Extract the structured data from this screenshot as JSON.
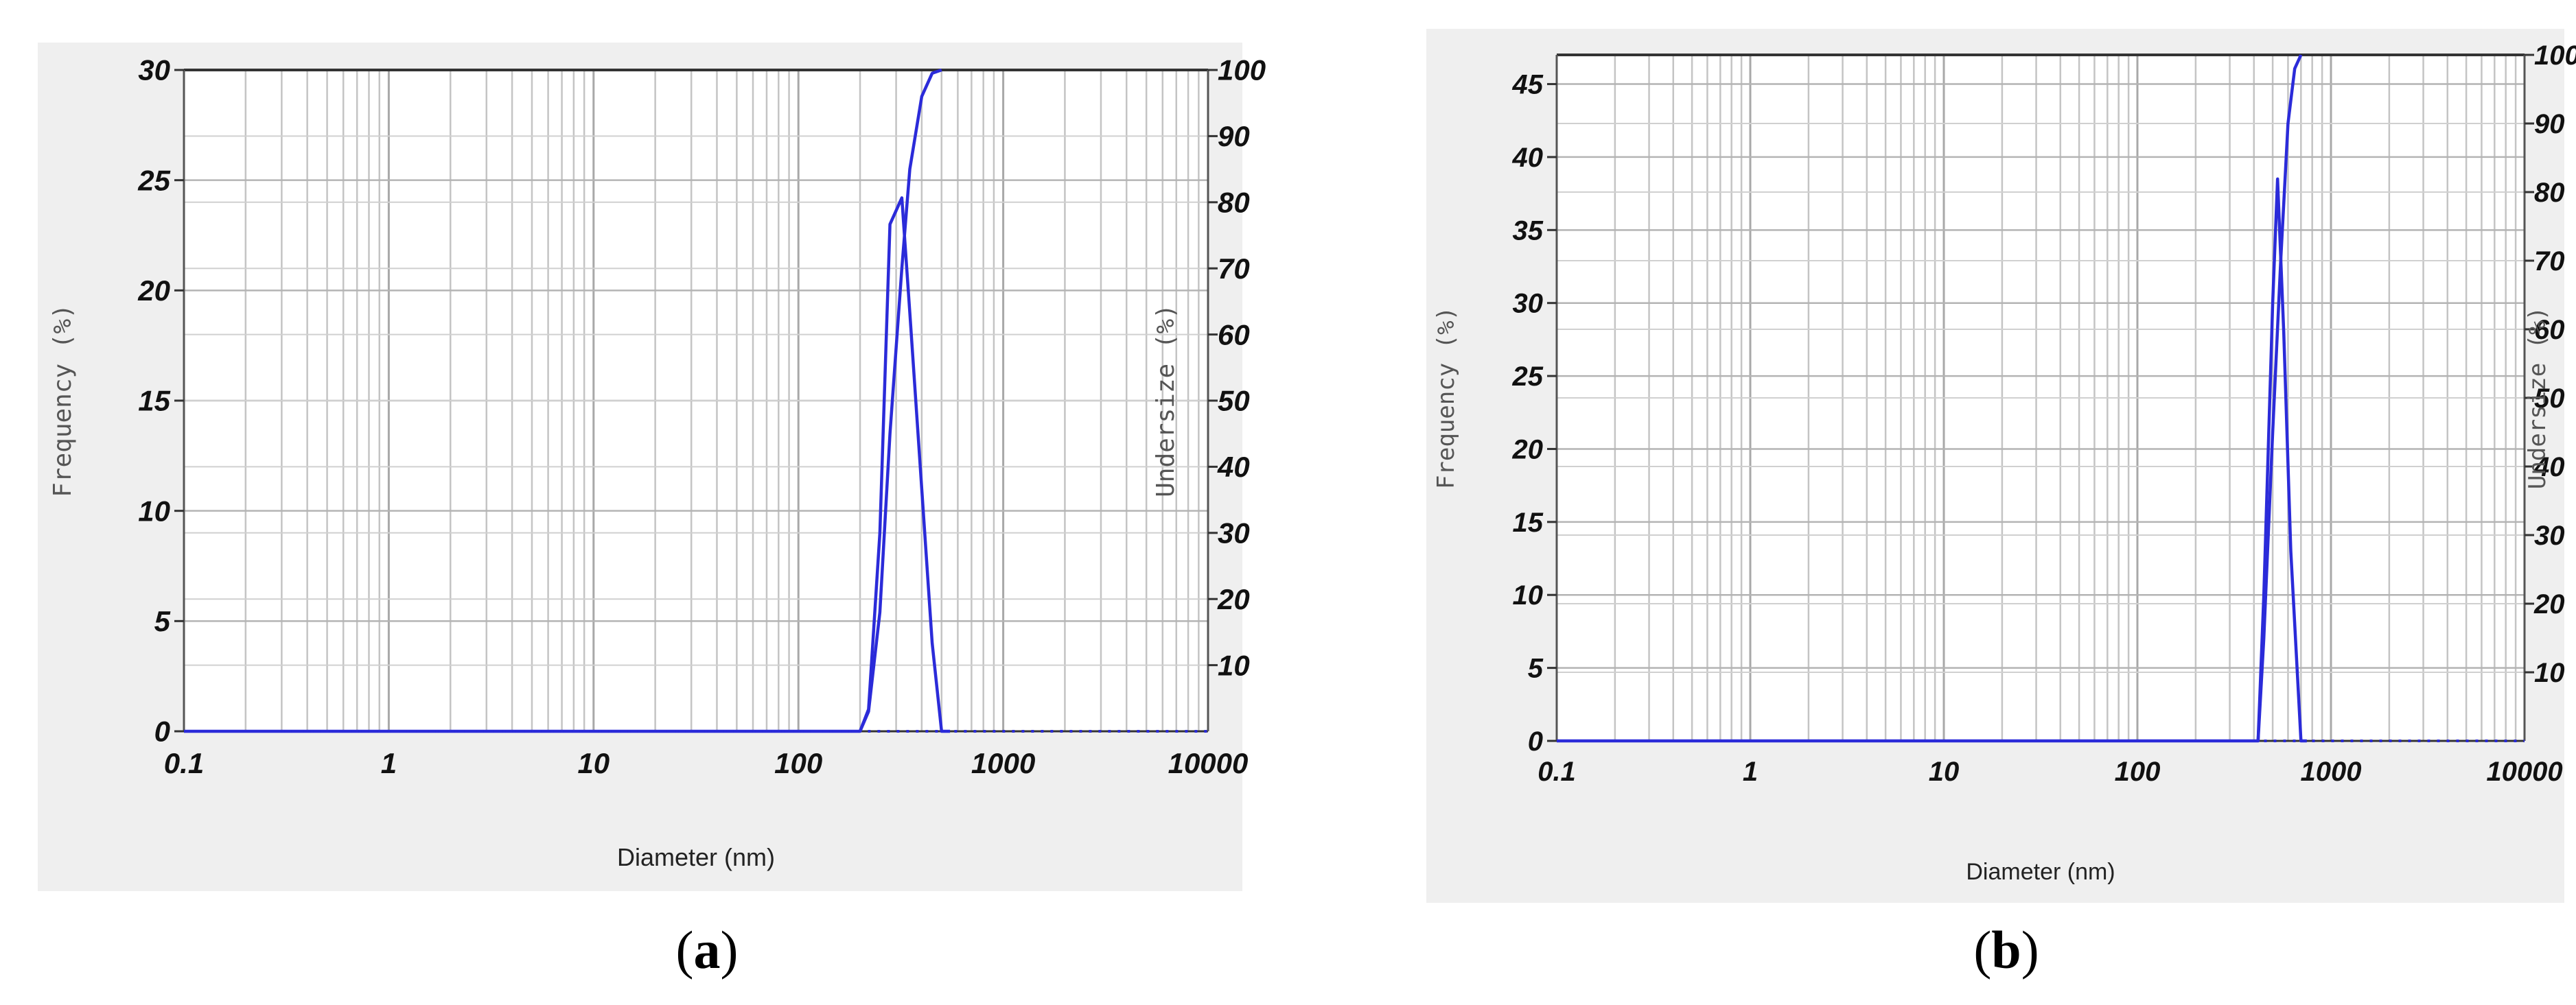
{
  "chart_data": [
    {
      "type": "line",
      "panel_label": "a",
      "xlabel": "Diameter (nm)",
      "ylabel": "Frequency (%)",
      "y2label": "Undersize (%)",
      "x_scale": "log",
      "xlim": [
        0.1,
        10000
      ],
      "ylim": [
        0,
        30
      ],
      "y2lim": [
        0,
        100
      ],
      "x_ticks": [
        "0.1",
        "1",
        "10",
        "100",
        "1000",
        "10000"
      ],
      "y_ticks": [
        "0",
        "5",
        "10",
        "15",
        "20",
        "25",
        "30"
      ],
      "y2_ticks": [
        "10",
        "20",
        "30",
        "40",
        "50",
        "60",
        "70",
        "80",
        "90",
        "100"
      ],
      "grid": true,
      "series": [
        {
          "axis": "left",
          "style": "solid",
          "x": [
            0.1,
            0.3,
            200,
            220,
            250,
            280,
            320,
            350,
            400,
            450,
            500,
            550
          ],
          "y": [
            0,
            0,
            0,
            1,
            9,
            23,
            24.2,
            19,
            11,
            4,
            0,
            0
          ]
        },
        {
          "axis": "right",
          "style": "solid",
          "x": [
            200,
            220,
            250,
            280,
            320,
            350,
            400,
            450,
            500
          ],
          "y": [
            0,
            3,
            18,
            45,
            70,
            85,
            96,
            99.5,
            100
          ]
        },
        {
          "axis": "left",
          "style": "dotted",
          "x": [
            0.3,
            200,
            550,
            10000
          ],
          "y": [
            0,
            0,
            0,
            0
          ]
        }
      ]
    },
    {
      "type": "line",
      "panel_label": "b",
      "xlabel": "Diameter (nm)",
      "ylabel": "Frequency (%)",
      "y2label": "Undersize (%)",
      "x_scale": "log",
      "xlim": [
        0.1,
        10000
      ],
      "ylim": [
        0,
        47
      ],
      "y2lim": [
        0,
        100
      ],
      "x_ticks": [
        "0.1",
        "1",
        "10",
        "100",
        "1000",
        "10000"
      ],
      "y_ticks": [
        "0",
        "5",
        "10",
        "15",
        "20",
        "25",
        "30",
        "35",
        "40",
        "45"
      ],
      "y2_ticks": [
        "10",
        "20",
        "30",
        "40",
        "50",
        "60",
        "70",
        "80",
        "90",
        "100"
      ],
      "grid": true,
      "series": [
        {
          "axis": "left",
          "style": "solid",
          "x": [
            0.1,
            0.3,
            420,
            450,
            500,
            530,
            570,
            620,
            700,
            750
          ],
          "y": [
            0,
            0,
            0,
            10,
            30,
            38.5,
            28,
            13,
            0,
            0
          ]
        },
        {
          "axis": "right",
          "style": "solid",
          "x": [
            420,
            450,
            500,
            550,
            600,
            650,
            700
          ],
          "y": [
            0,
            15,
            45,
            70,
            90,
            98,
            100
          ]
        },
        {
          "axis": "left",
          "style": "dotted",
          "x": [
            0.3,
            420,
            750,
            10000
          ],
          "y": [
            0,
            0,
            0,
            0
          ]
        }
      ]
    }
  ]
}
